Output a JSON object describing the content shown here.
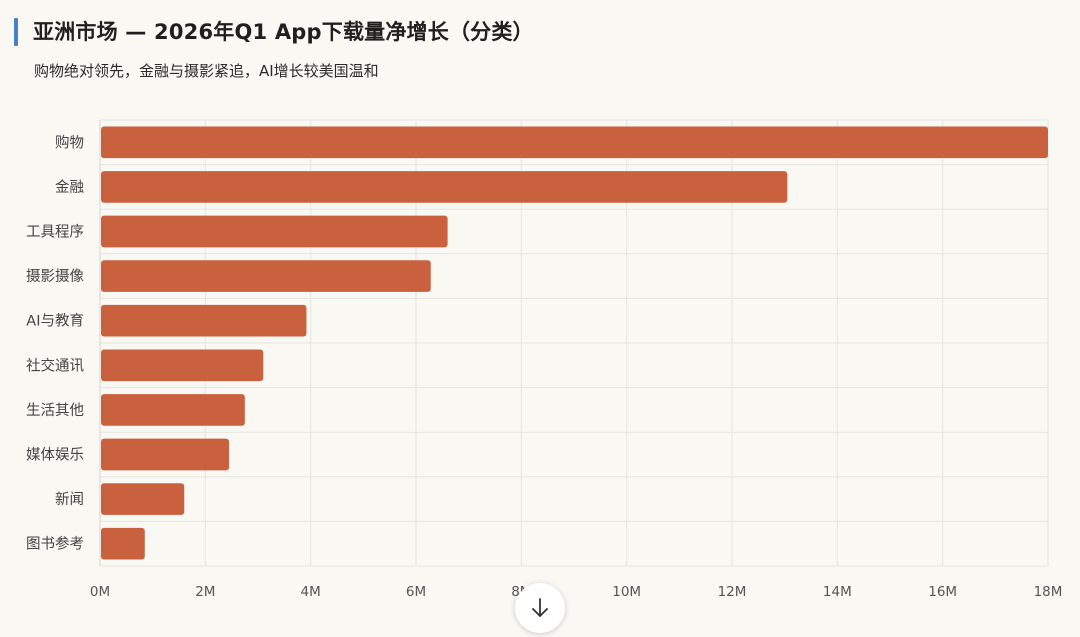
{
  "header": {
    "title": "亚洲市场 — 2026年Q1 App下载量净增长（分类）",
    "subtitle": "购物绝对领先，金融与摄影紧追，AI增长较美国温和"
  },
  "chart_data": {
    "type": "bar",
    "orientation": "horizontal",
    "categories": [
      "购物",
      "金融",
      "工具程序",
      "摄影摄像",
      "AI与教育",
      "社交通讯",
      "生活其他",
      "媒体娱乐",
      "新闻",
      "图书参考"
    ],
    "values": [
      18.0,
      13.05,
      6.6,
      6.28,
      3.92,
      3.1,
      2.75,
      2.45,
      1.6,
      0.85
    ],
    "unit": "M",
    "xlim": [
      0,
      18
    ],
    "x_ticks": [
      "0M",
      "2M",
      "4M",
      "6M",
      "8M",
      "10M",
      "12M",
      "14M",
      "16M",
      "18M"
    ],
    "grid": true,
    "bar_color": "#c9603e"
  },
  "controls": {
    "scroll_down_icon": "arrow-down-icon"
  }
}
